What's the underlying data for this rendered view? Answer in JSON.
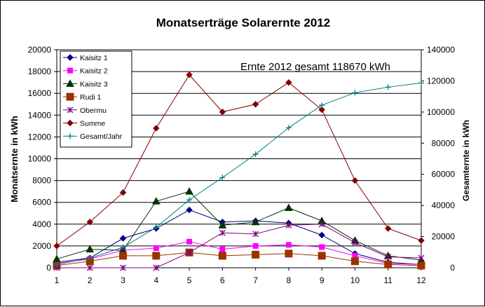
{
  "chart_data": {
    "type": "line",
    "title": "Monatserträge Solarernte 2012",
    "annotation": "Ernte 2012 gesamt 118670 kWh",
    "xlabel": "",
    "ylabel": "Monatsernte in kWh",
    "y2label": "Gesamternte in kWh",
    "x": [
      1,
      2,
      3,
      4,
      5,
      6,
      7,
      8,
      9,
      10,
      11,
      12
    ],
    "ylim": [
      0,
      20000
    ],
    "y2lim": [
      0,
      140000
    ],
    "yticks": [
      0,
      2000,
      4000,
      6000,
      8000,
      10000,
      12000,
      14000,
      16000,
      18000,
      20000
    ],
    "y2ticks": [
      0,
      20000,
      40000,
      60000,
      80000,
      100000,
      120000,
      140000
    ],
    "grid": "horizontal",
    "legend_position": "top-left",
    "series": [
      {
        "name": "Kaisitz 1",
        "axis": "left",
        "color": "#000080",
        "marker": "diamond",
        "values": [
          500,
          900,
          2700,
          3600,
          5300,
          4200,
          4300,
          4100,
          3000,
          1300,
          500,
          300
        ]
      },
      {
        "name": "Kaisitz 2",
        "axis": "left",
        "color": "#ff00ff",
        "marker": "square",
        "values": [
          400,
          800,
          1600,
          1800,
          2400,
          1700,
          2000,
          2100,
          1900,
          1100,
          400,
          300
        ]
      },
      {
        "name": "Kaisitz 3",
        "axis": "left",
        "color": "#003300",
        "marker": "triangle",
        "values": [
          800,
          1700,
          1600,
          6100,
          7000,
          3900,
          4200,
          5500,
          4300,
          2500,
          1100,
          700
        ]
      },
      {
        "name": "Rudi 1",
        "axis": "left",
        "color": "#993300",
        "marker": "square-large",
        "values": [
          200,
          600,
          1100,
          1100,
          1400,
          1100,
          1200,
          1300,
          1100,
          600,
          300,
          200
        ]
      },
      {
        "name": "Obermu",
        "axis": "left",
        "color": "#800080",
        "marker": "star",
        "values": [
          0,
          0,
          0,
          0,
          1400,
          3200,
          3100,
          3900,
          4000,
          2300,
          1000,
          900
        ]
      },
      {
        "name": "Summe",
        "axis": "left",
        "color": "#800000",
        "marker": "diamond",
        "values": [
          2000,
          4200,
          6900,
          12800,
          17700,
          14300,
          15000,
          17000,
          14500,
          8000,
          3600,
          2500
        ]
      },
      {
        "name": "Gesamt/Jahr",
        "axis": "right",
        "color": "#008080",
        "marker": "plus",
        "values": [
          2000,
          6200,
          13100,
          25900,
          43600,
          57900,
          72900,
          89900,
          104400,
          112400,
          116000,
          118670
        ]
      }
    ]
  }
}
